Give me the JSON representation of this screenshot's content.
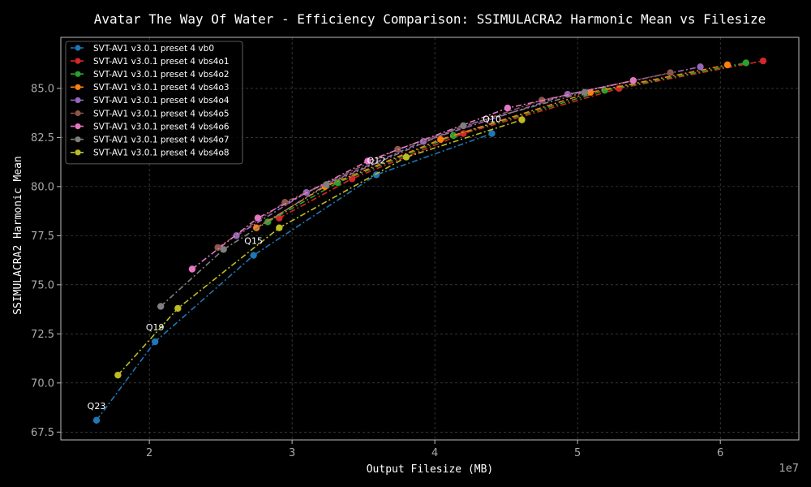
{
  "chart_data": {
    "type": "line",
    "title": "Avatar The Way Of Water - Efficiency Comparison: SSIMULACRA2 Harmonic Mean vs Filesize",
    "xlabel": "Output Filesize (MB)",
    "ylabel": "SSIMULACRA2 Harmonic Mean",
    "x_offset_label": "1e7",
    "x_unit_multiplier": 10000000,
    "xlim": [
      1.38,
      6.55
    ],
    "ylim": [
      67.1,
      87.6
    ],
    "xticks": [
      2,
      3,
      4,
      5,
      6
    ],
    "yticks": [
      67.5,
      70.0,
      72.5,
      75.0,
      77.5,
      80.0,
      82.5,
      85.0
    ],
    "ytick_labels": [
      "67.5",
      "70.0",
      "72.5",
      "75.0",
      "77.5",
      "80.0",
      "82.5",
      "85.0"
    ],
    "grid": true,
    "legend_position": "top-left",
    "series": [
      {
        "name": "SVT-AV1 v3.0.1 preset 4 vb0",
        "color": "#1f77b4",
        "x": [
          1.63,
          2.04,
          2.73,
          3.59,
          4.4
        ],
        "y": [
          68.1,
          72.1,
          76.5,
          80.6,
          82.7
        ]
      },
      {
        "name": "SVT-AV1 v3.0.1 preset 4 vbs4o1",
        "color": "#d62728",
        "x": [
          2.91,
          3.42,
          4.2,
          5.29,
          6.3
        ],
        "y": [
          78.4,
          80.4,
          82.7,
          85.0,
          86.4
        ]
      },
      {
        "name": "SVT-AV1 v3.0.1 preset 4 vbs4o2",
        "color": "#2ca02c",
        "x": [
          2.83,
          3.32,
          4.13,
          5.19,
          6.18
        ],
        "y": [
          78.2,
          80.2,
          82.6,
          84.9,
          86.3
        ]
      },
      {
        "name": "SVT-AV1 v3.0.1 preset 4 vbs4o3",
        "color": "#ff7f0e",
        "x": [
          2.75,
          3.23,
          4.04,
          5.09,
          6.05
        ],
        "y": [
          77.9,
          80.0,
          82.4,
          84.8,
          86.2
        ]
      },
      {
        "name": "SVT-AV1 v3.0.1 preset 4 vbs4o4",
        "color": "#9467bd",
        "x": [
          2.61,
          3.1,
          3.92,
          4.93,
          5.86
        ],
        "y": [
          77.5,
          79.7,
          82.3,
          84.7,
          86.1
        ]
      },
      {
        "name": "SVT-AV1 v3.0.1 preset 4 vbs4o5",
        "color": "#8c564b",
        "x": [
          2.48,
          2.95,
          3.74,
          4.75,
          5.65
        ],
        "y": [
          76.9,
          79.2,
          81.9,
          84.4,
          85.8
        ]
      },
      {
        "name": "SVT-AV1 v3.0.1 preset 4 vbs4o6",
        "color": "#e377c2",
        "x": [
          2.3,
          2.76,
          3.53,
          4.51,
          5.39
        ],
        "y": [
          75.8,
          78.4,
          81.3,
          84.0,
          85.4
        ]
      },
      {
        "name": "SVT-AV1 v3.0.1 preset 4 vbs4o7",
        "color": "#7f7f7f",
        "x": [
          2.08,
          2.52,
          3.24,
          4.2,
          5.05
        ],
        "y": [
          73.9,
          76.8,
          80.1,
          83.1,
          84.8
        ]
      },
      {
        "name": "SVT-AV1 v3.0.1 preset 4 vbs4o8",
        "color": "#bcbd22",
        "x": [
          1.78,
          2.2,
          2.91,
          3.8,
          4.61
        ],
        "y": [
          70.4,
          73.8,
          77.9,
          81.5,
          83.4
        ]
      }
    ],
    "annotations": [
      {
        "text": "Q23",
        "x": 1.63,
        "y": 68.1
      },
      {
        "text": "Q19",
        "x": 2.04,
        "y": 72.1
      },
      {
        "text": "Q15",
        "x": 2.73,
        "y": 76.5
      },
      {
        "text": "Q12",
        "x": 3.59,
        "y": 80.6
      },
      {
        "text": "Q10",
        "x": 4.4,
        "y": 82.7
      }
    ]
  }
}
